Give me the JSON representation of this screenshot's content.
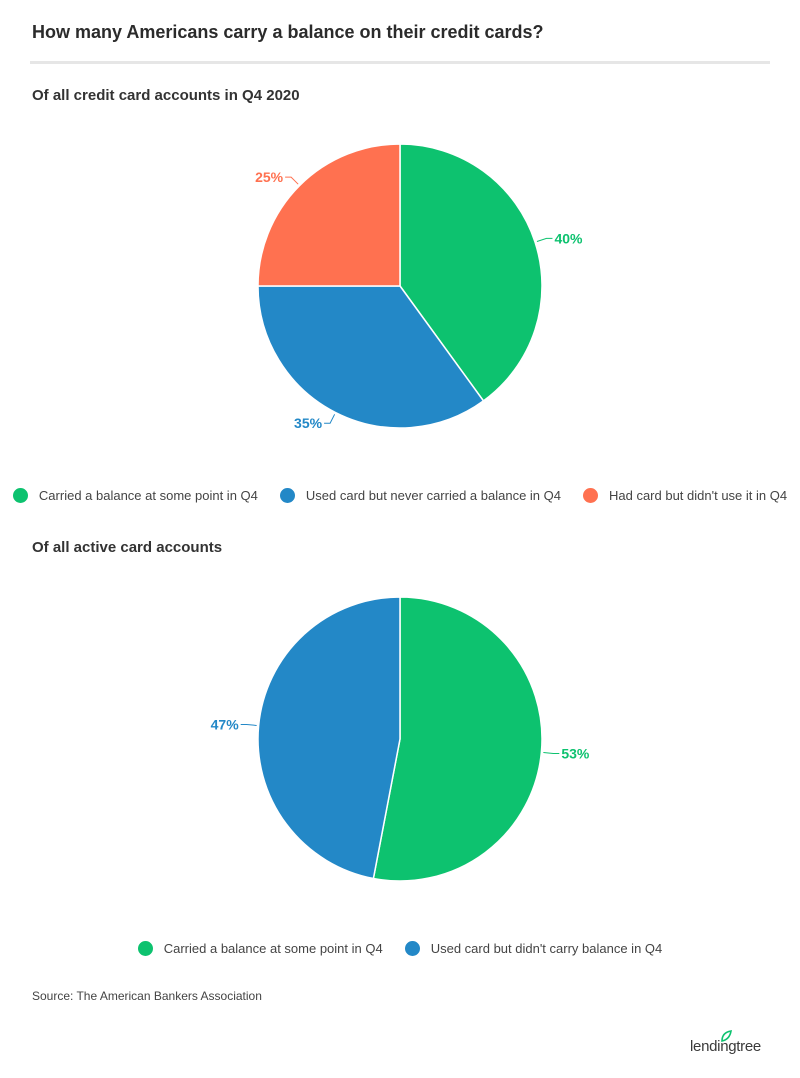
{
  "header": {
    "title": "How many Americans carry a balance on their credit cards?"
  },
  "colors": {
    "green": "#0dc26f",
    "blue": "#2388c7",
    "orange": "#ff7150"
  },
  "chart_data": [
    {
      "type": "pie",
      "title": "Of all credit card accounts in Q4 2020",
      "legend_position": "bottom",
      "slices": [
        {
          "name": "Carried a balance at some point in Q4",
          "value": 40,
          "label": "40%",
          "color": "#0dc26f"
        },
        {
          "name": "Used card but never carried a balance in Q4",
          "value": 35,
          "label": "35%",
          "color": "#2388c7"
        },
        {
          "name": "Had card but didn't use it in Q4",
          "value": 25,
          "label": "25%",
          "color": "#ff7150"
        }
      ]
    },
    {
      "type": "pie",
      "title": "Of all active card accounts",
      "legend_position": "bottom",
      "slices": [
        {
          "name": "Carried a balance at some point in Q4",
          "value": 53,
          "label": "53%",
          "color": "#0dc26f"
        },
        {
          "name": "Used card but didn't carry balance in Q4",
          "value": 47,
          "label": "47%",
          "color": "#2388c7"
        }
      ]
    }
  ],
  "footer": {
    "source": "Source: The American Bankers Association",
    "logo_text": "lendingtree",
    "logo_icon": "leaf-icon"
  }
}
